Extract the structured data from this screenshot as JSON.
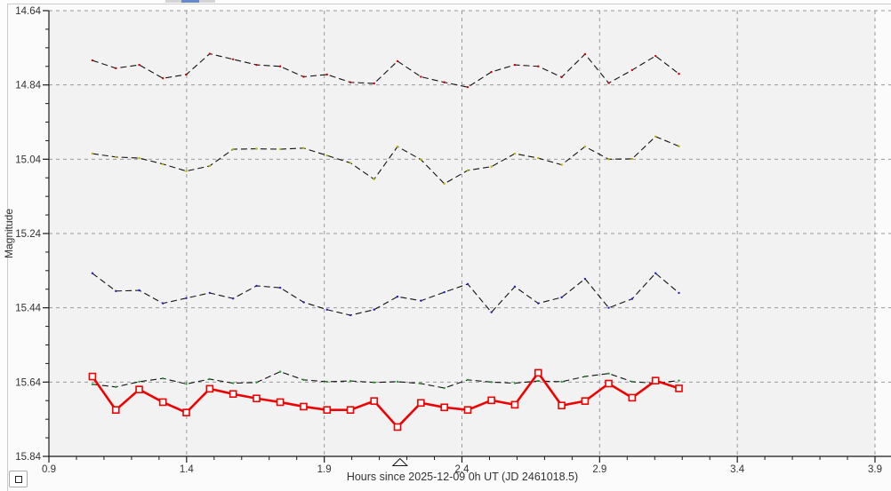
{
  "panel": {
    "corner_button_icon": "small-square-icon"
  },
  "chart_data": {
    "type": "line",
    "title": "",
    "xlabel": "Hours since 2025-12-09 0h UT (JD 2461018.5)",
    "ylabel": "Magnitude",
    "x_tick_labels": [
      "0.9",
      "1.4",
      "1.9",
      "2.4",
      "2.9",
      "3.4",
      "3.9"
    ],
    "y_tick_labels": [
      "14.64",
      "14.84",
      "15.04",
      "15.24",
      "15.44",
      "15.64",
      "15.84"
    ],
    "xlim": [
      0.9,
      3.9
    ],
    "ylim": [
      15.84,
      14.64
    ],
    "x_minor_step": 0.1,
    "y_minor_step": 0.05,
    "grid": true,
    "axis_inverted": true,
    "colors": {
      "plot_background": "#f2f2f2",
      "margin_background": "#fbfbfb",
      "gridline": "#999999",
      "axis": "#1a1a1a",
      "tick_text": "#333333",
      "target_red": "#ee0000",
      "dot_red": "#cc0000",
      "dot_yellow": "#b8b400",
      "dot_blue": "#2222cc",
      "dot_green": "#22a022"
    },
    "x": [
      1.058,
      1.143,
      1.228,
      1.314,
      1.399,
      1.484,
      1.569,
      1.654,
      1.74,
      1.825,
      1.91,
      1.995,
      2.081,
      2.166,
      2.251,
      2.336,
      2.421,
      2.507,
      2.592,
      2.677,
      2.762,
      2.847,
      2.933,
      3.018,
      3.103,
      3.188
    ],
    "series": [
      {
        "name": "dashed-comp-series-1",
        "line_color": "#111111",
        "line_style": "dashed",
        "marker": "dot",
        "marker_color": "#cc0000",
        "values": [
          14.774,
          14.795,
          14.786,
          14.822,
          14.812,
          14.756,
          14.771,
          14.786,
          14.79,
          14.818,
          14.812,
          14.833,
          14.836,
          14.776,
          14.818,
          14.833,
          14.846,
          14.805,
          14.786,
          14.79,
          14.819,
          14.757,
          14.835,
          14.8,
          14.762,
          14.81
        ]
      },
      {
        "name": "dashed-comp-series-2",
        "line_color": "#111111",
        "line_style": "dashed",
        "marker": "dot",
        "marker_color": "#b8b400",
        "values": [
          15.025,
          15.034,
          15.037,
          15.053,
          15.072,
          15.058,
          15.013,
          15.012,
          15.013,
          15.01,
          15.03,
          15.05,
          15.094,
          15.006,
          15.041,
          15.106,
          15.07,
          15.06,
          15.025,
          15.037,
          15.055,
          15.006,
          15.04,
          15.039,
          14.979,
          15.005
        ]
      },
      {
        "name": "dashed-comp-series-3",
        "line_color": "#111111",
        "line_style": "dashed",
        "marker": "dot",
        "marker_color": "#2222cc",
        "values": [
          15.347,
          15.395,
          15.393,
          15.428,
          15.414,
          15.4,
          15.415,
          15.381,
          15.386,
          15.425,
          15.445,
          15.46,
          15.445,
          15.41,
          15.421,
          15.398,
          15.376,
          15.452,
          15.383,
          15.428,
          15.412,
          15.362,
          15.44,
          15.416,
          15.347,
          15.4
        ]
      },
      {
        "name": "dashed-comp-series-4",
        "line_color": "#111111",
        "line_style": "dashed",
        "marker": "dot",
        "marker_color": "#22a022",
        "values": [
          15.646,
          15.653,
          15.639,
          15.63,
          15.645,
          15.632,
          15.643,
          15.641,
          15.612,
          15.634,
          15.639,
          15.637,
          15.641,
          15.639,
          15.644,
          15.656,
          15.634,
          15.64,
          15.643,
          15.637,
          15.639,
          15.625,
          15.617,
          15.639,
          15.643,
          15.636
        ]
      },
      {
        "name": "red-target-series",
        "line_color": "#ee0000",
        "line_style": "solid",
        "marker": "open-square",
        "marker_color": "#ee0000",
        "values": [
          15.625,
          15.715,
          15.66,
          15.694,
          15.722,
          15.658,
          15.672,
          15.684,
          15.694,
          15.706,
          15.715,
          15.715,
          15.691,
          15.761,
          15.696,
          15.708,
          15.715,
          15.689,
          15.701,
          15.615,
          15.703,
          15.691,
          15.644,
          15.682,
          15.636,
          15.657
        ]
      }
    ],
    "annotations": [
      {
        "type": "open-triangle-up",
        "x": 2.175,
        "position": "on-x-axis"
      }
    ]
  }
}
